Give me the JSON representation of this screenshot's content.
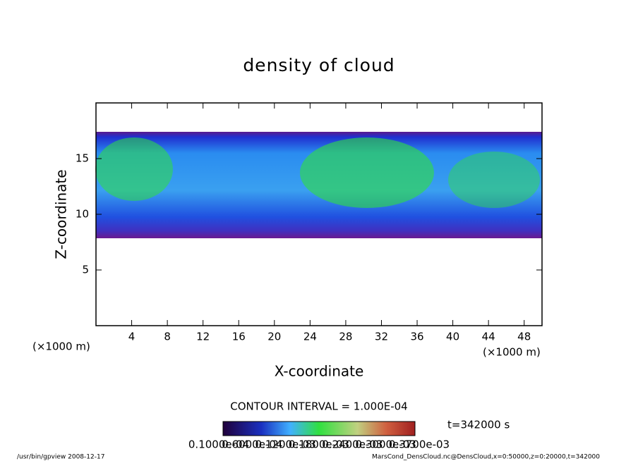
{
  "chart_data": {
    "type": "contour",
    "title": "density of cloud",
    "xlabel": "X-coordinate",
    "ylabel": "Z-coordinate",
    "x_unit": "(×1000 m)",
    "xlim": [
      0,
      50
    ],
    "ylim": [
      0,
      20
    ],
    "xticks": [
      4,
      8,
      12,
      16,
      20,
      24,
      28,
      32,
      36,
      40,
      44,
      48
    ],
    "yticks": [
      5,
      10,
      15
    ],
    "contour_interval": "CONTOUR INTERVAL = 1.000E-04",
    "time": "t=342000 s",
    "colorbar_labels": [
      "0.1000e-04",
      "0.6000e-04",
      "0.1200e-03",
      "0.1800e-03",
      "0.2400e-03",
      "0.3000e-03",
      "0.3700e-03"
    ],
    "footer_left": "/usr/bin/gpview  2008-12-17",
    "footer_right": "MarsCond_DensCloud.nc@DensCloud,x=0:50000,z=0:20000,t=342000"
  }
}
